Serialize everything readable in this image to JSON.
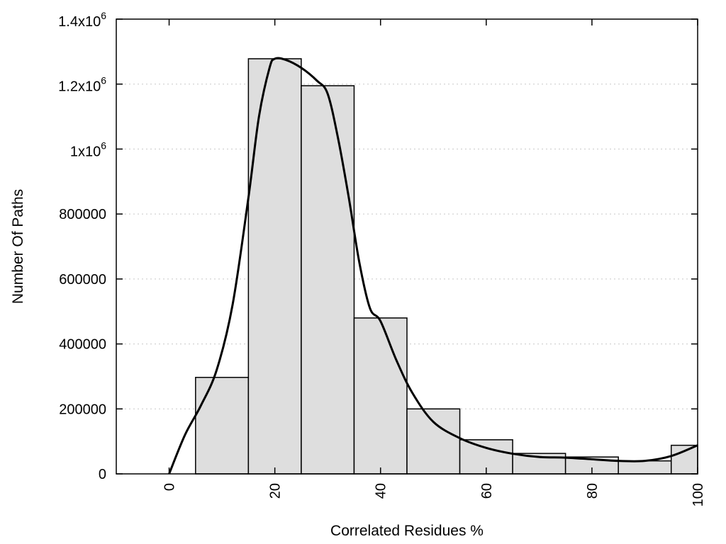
{
  "chart_data": {
    "type": "bar",
    "overlay": "line",
    "title": "",
    "xlabel": "Correlated Residues %",
    "ylabel": "Number Of Paths",
    "xlim": [
      -10,
      100
    ],
    "ylim": [
      0,
      1400000
    ],
    "x_ticks": [
      {
        "value": 0,
        "label": "0"
      },
      {
        "value": 20,
        "label": "20"
      },
      {
        "value": 40,
        "label": "40"
      },
      {
        "value": 60,
        "label": "60"
      },
      {
        "value": 80,
        "label": "80"
      },
      {
        "value": 100,
        "label": "100"
      }
    ],
    "y_ticks": [
      {
        "value": 0,
        "base": "0",
        "exp": ""
      },
      {
        "value": 200000,
        "base": "200000",
        "exp": ""
      },
      {
        "value": 400000,
        "base": "400000",
        "exp": ""
      },
      {
        "value": 600000,
        "base": "600000",
        "exp": ""
      },
      {
        "value": 800000,
        "base": "800000",
        "exp": ""
      },
      {
        "value": 1000000,
        "base": "1x10",
        "exp": "6"
      },
      {
        "value": 1200000,
        "base": "1.2x10",
        "exp": "6"
      },
      {
        "value": 1400000,
        "base": "1.4x10",
        "exp": "6"
      }
    ],
    "bins": [
      {
        "x0": 5,
        "x1": 15,
        "value": 297000
      },
      {
        "x0": 15,
        "x1": 25,
        "value": 1278000
      },
      {
        "x0": 25,
        "x1": 35,
        "value": 1195000
      },
      {
        "x0": 35,
        "x1": 45,
        "value": 480000
      },
      {
        "x0": 45,
        "x1": 55,
        "value": 200000
      },
      {
        "x0": 55,
        "x1": 65,
        "value": 105000
      },
      {
        "x0": 65,
        "x1": 75,
        "value": 63000
      },
      {
        "x0": 75,
        "x1": 85,
        "value": 52000
      },
      {
        "x0": 85,
        "x1": 95,
        "value": 40000
      },
      {
        "x0": 95,
        "x1": 100,
        "value": 88000
      }
    ],
    "curve": {
      "x": [
        0,
        3,
        6,
        9,
        12,
        15,
        17,
        19,
        20,
        22,
        25,
        28,
        30,
        32,
        34,
        36,
        38,
        40,
        43,
        46,
        50,
        55,
        60,
        65,
        70,
        75,
        80,
        85,
        90,
        95,
        100
      ],
      "y": [
        0,
        120000,
        210000,
        320000,
        520000,
        850000,
        1100000,
        1250000,
        1278000,
        1275000,
        1250000,
        1210000,
        1170000,
        1030000,
        850000,
        650000,
        510000,
        470000,
        350000,
        250000,
        160000,
        110000,
        80000,
        62000,
        52000,
        50000,
        45000,
        40000,
        40000,
        55000,
        88000
      ]
    },
    "grid": "horizontal-dotted",
    "legend": "none"
  }
}
